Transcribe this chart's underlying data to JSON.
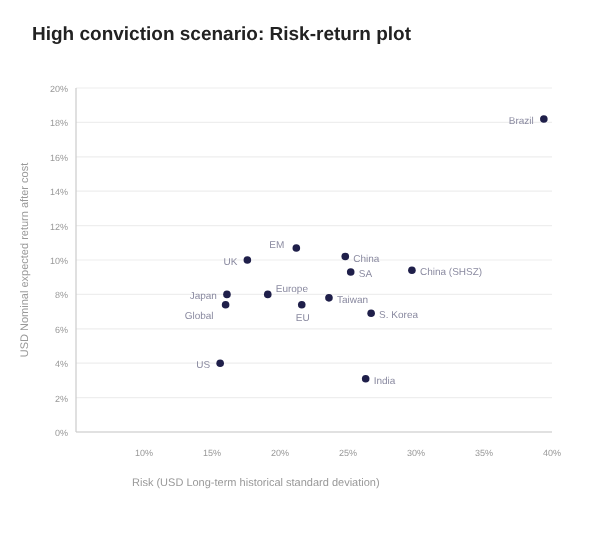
{
  "chart_data": {
    "type": "scatter",
    "title": "High conviction scenario: Risk-return plot",
    "xlabel": "Risk (USD Long-term historical standard deviation)",
    "ylabel": "USD Nominal expected return after cost",
    "x": [
      39.4,
      17.6,
      16.1,
      16.0,
      15.6,
      19.1,
      21.2,
      21.6,
      24.8,
      25.2,
      29.7,
      23.6,
      26.7,
      26.3
    ],
    "series": [
      {
        "color": "#1f1f4a",
        "values": [
          18.2,
          10.0,
          8.0,
          7.4,
          4.0,
          8.0,
          10.7,
          7.4,
          10.2,
          9.3,
          9.4,
          7.8,
          6.9,
          3.1
        ]
      }
    ],
    "annotations": [
      {
        "text": "Brazil",
        "x": 39.4,
        "y": 18.2
      },
      {
        "text": "UK",
        "x": 17.6,
        "y": 10.0
      },
      {
        "text": "Japan",
        "x": 16.1,
        "y": 8.0
      },
      {
        "text": "Global",
        "x": 16.0,
        "y": 7.4
      },
      {
        "text": "US",
        "x": 15.6,
        "y": 4.0
      },
      {
        "text": "Europe",
        "x": 19.1,
        "y": 8.0
      },
      {
        "text": "EM",
        "x": 21.2,
        "y": 10.7
      },
      {
        "text": "EU",
        "x": 21.6,
        "y": 7.4
      },
      {
        "text": "China",
        "x": 24.8,
        "y": 10.2
      },
      {
        "text": "SA",
        "x": 25.2,
        "y": 9.3
      },
      {
        "text": "China (SHSZ)",
        "x": 29.7,
        "y": 9.4
      },
      {
        "text": "Taiwan",
        "x": 23.6,
        "y": 7.8
      },
      {
        "text": "S. Korea",
        "x": 26.7,
        "y": 6.9
      },
      {
        "text": "India",
        "x": 26.3,
        "y": 3.1
      }
    ],
    "xlim": [
      5,
      40
    ],
    "ylim": [
      0,
      20
    ],
    "xticks": [
      {
        "value": 10,
        "label": "10%"
      },
      {
        "value": 15,
        "label": "15%"
      },
      {
        "value": 20,
        "label": "20%"
      },
      {
        "value": 25,
        "label": "25%"
      },
      {
        "value": 30,
        "label": "30%"
      },
      {
        "value": 35,
        "label": "35%"
      },
      {
        "value": 40,
        "label": "40%"
      }
    ],
    "yticks": [
      {
        "value": 0,
        "label": "0%"
      },
      {
        "value": 2,
        "label": "2%"
      },
      {
        "value": 4,
        "label": "4%"
      },
      {
        "value": 6,
        "label": "6%"
      },
      {
        "value": 8,
        "label": "8%"
      },
      {
        "value": 10,
        "label": "10%"
      },
      {
        "value": 12,
        "label": "12%"
      },
      {
        "value": 14,
        "label": "14%"
      },
      {
        "value": 16,
        "label": "16%"
      },
      {
        "value": 18,
        "label": "18%"
      },
      {
        "value": 20,
        "label": "20%"
      }
    ],
    "grid": "y",
    "marker": "circle"
  }
}
